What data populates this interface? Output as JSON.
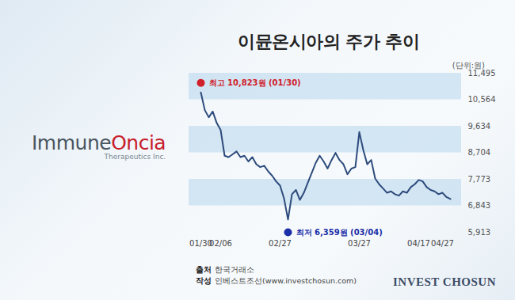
{
  "chart_data": {
    "type": "line",
    "title": "이뮨온시아의 주가 추이",
    "unit": "(단위:원)",
    "categories": [
      "01/30",
      null,
      null,
      null,
      null,
      "02/06",
      null,
      null,
      null,
      null,
      null,
      null,
      null,
      null,
      null,
      null,
      null,
      null,
      null,
      null,
      "02/27",
      null,
      null,
      null,
      null,
      null,
      null,
      null,
      null,
      null,
      null,
      null,
      null,
      null,
      null,
      null,
      null,
      null,
      null,
      null,
      "03/27",
      null,
      null,
      null,
      null,
      null,
      null,
      null,
      null,
      null,
      null,
      null,
      null,
      null,
      null,
      "04/17",
      null,
      null,
      null,
      null,
      null,
      "04/27",
      null,
      null
    ],
    "values": [
      10823,
      10200,
      9950,
      10150,
      9750,
      9500,
      8600,
      8550,
      8650,
      8750,
      8550,
      8600,
      8400,
      8550,
      8300,
      8200,
      8250,
      8050,
      7900,
      7700,
      7550,
      7100,
      6359,
      7250,
      7400,
      7050,
      7300,
      7650,
      8000,
      8350,
      8600,
      8400,
      8150,
      8450,
      8700,
      8450,
      8300,
      7950,
      8150,
      8200,
      9430,
      8800,
      8300,
      8450,
      7800,
      7600,
      7450,
      7300,
      7350,
      7250,
      7200,
      7350,
      7300,
      7500,
      7600,
      7750,
      7700,
      7500,
      7400,
      7350,
      7250,
      7300,
      7150,
      7080
    ],
    "color": "#2d4b7c",
    "ylim": [
      5913,
      11495
    ],
    "yticks": [
      {
        "value": 5913,
        "label": "5,913"
      },
      {
        "value": 6843,
        "label": "6,843"
      },
      {
        "value": 7773,
        "label": "7,773"
      },
      {
        "value": 8704,
        "label": "8,704"
      },
      {
        "value": 9634,
        "label": "9,634"
      },
      {
        "value": 10564,
        "label": "10,564"
      },
      {
        "value": 11495,
        "label": "11,495"
      }
    ],
    "grid": true,
    "annotations": [
      {
        "text": "최고 10,823원 (01/30)",
        "y": 10823,
        "color": "#d0202a"
      },
      {
        "text": "최저 6,359원 (03/04)",
        "y": 6359,
        "color": "#1c2fa8"
      }
    ],
    "source": [
      {
        "label": "출처",
        "text": "한국거래소"
      },
      {
        "label": "작성",
        "text": "인베스트조선(www.investchosun.com)"
      }
    ],
    "logo": {
      "parts": [
        "Immune",
        "Oncia"
      ],
      "sub": "Therapeutics Inc."
    },
    "brand": "INVEST CHOSUN"
  }
}
